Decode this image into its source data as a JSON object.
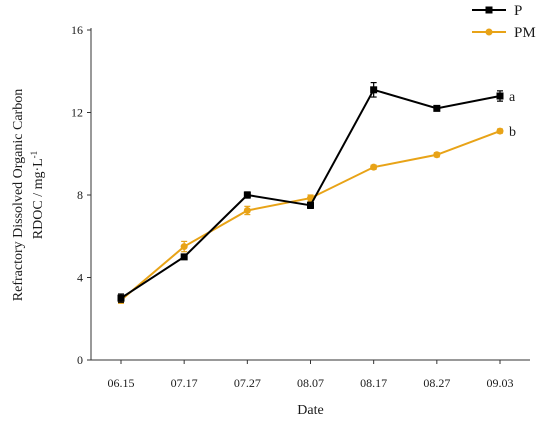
{
  "chart_data": {
    "type": "line",
    "xlabel": "Date",
    "ylabel_line1": "Refractory Dissolved Organic Carbon",
    "ylabel_line2": "RDOC / mg·L",
    "ylabel_sup": "-1",
    "categories": [
      "06.15",
      "07.17",
      "07.27",
      "08.07",
      "08.17",
      "08.27",
      "09.03"
    ],
    "yticks": [
      0,
      4,
      8,
      12,
      16
    ],
    "ylim": [
      0,
      16
    ],
    "grid": false,
    "legend_position": "top-right",
    "series": [
      {
        "name": "P",
        "color": "#000000",
        "marker": "square",
        "values": [
          3.0,
          5.0,
          8.0,
          7.5,
          13.1,
          12.2,
          12.8
        ],
        "errors": [
          0.2,
          0.1,
          0.15,
          0.15,
          0.35,
          0.1,
          0.25
        ],
        "end_label": "a"
      },
      {
        "name": "PM",
        "color": "#E8A317",
        "marker": "circle",
        "values": [
          2.9,
          5.5,
          7.25,
          7.85,
          9.35,
          9.95,
          11.1
        ],
        "errors": [
          0.15,
          0.25,
          0.2,
          0.15,
          0.1,
          0.1,
          0.1
        ],
        "end_label": "b"
      }
    ]
  }
}
